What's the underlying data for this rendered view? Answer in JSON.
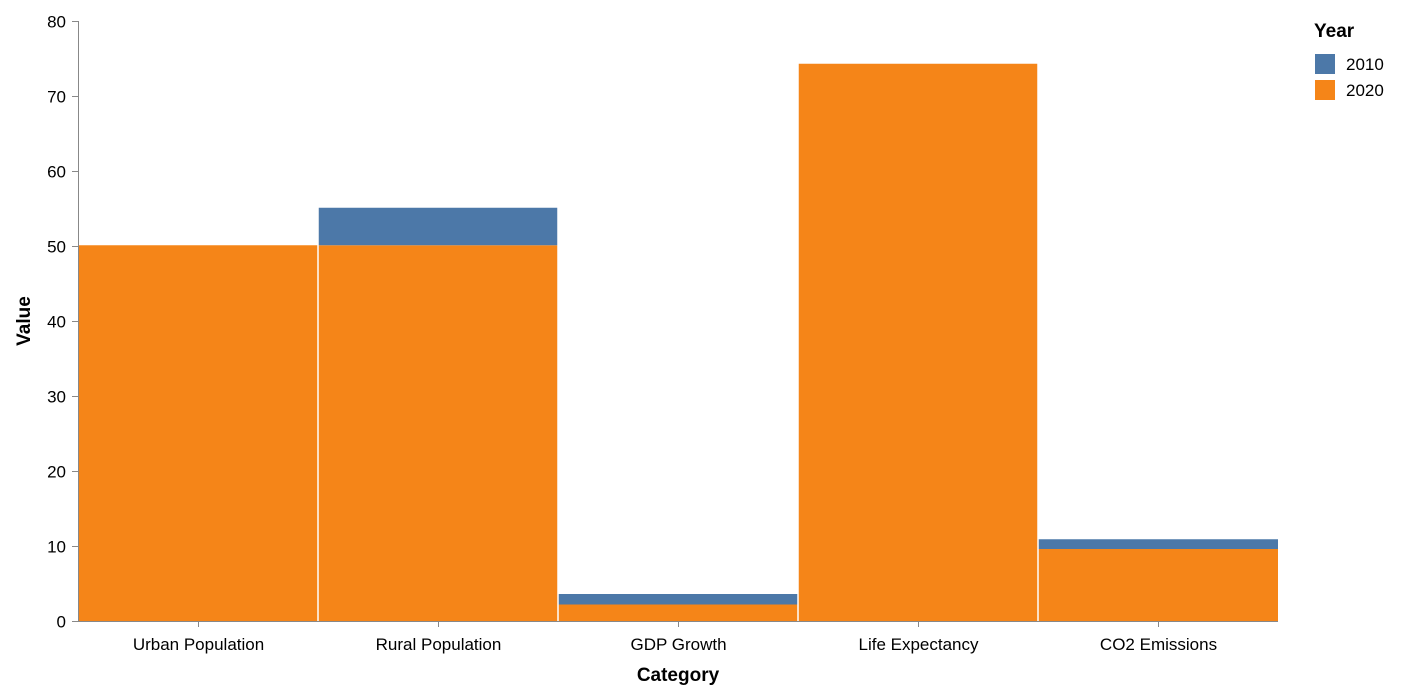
{
  "chart_data": {
    "type": "bar",
    "stacked": true,
    "title": "",
    "xlabel": "Category",
    "ylabel": "Value",
    "ylim": [
      0,
      80
    ],
    "yticks": [
      0,
      10,
      20,
      30,
      40,
      50,
      60,
      70,
      80
    ],
    "grid": false,
    "legend": {
      "title": "Year",
      "placement": "top-right"
    },
    "categories": [
      "Urban Population",
      "Rural Population",
      "GDP Growth",
      "Life Expectancy",
      "CO2 Emissions"
    ],
    "series": [
      {
        "name": "2020",
        "color": "#f58518",
        "values": [
          50.1,
          50.1,
          2.2,
          74.3,
          9.6
        ]
      },
      {
        "name": "2010",
        "color": "#4c78a8",
        "values": [
          0,
          5.0,
          1.4,
          0,
          1.3
        ]
      }
    ],
    "legend_order": [
      "2010",
      "2020"
    ]
  }
}
